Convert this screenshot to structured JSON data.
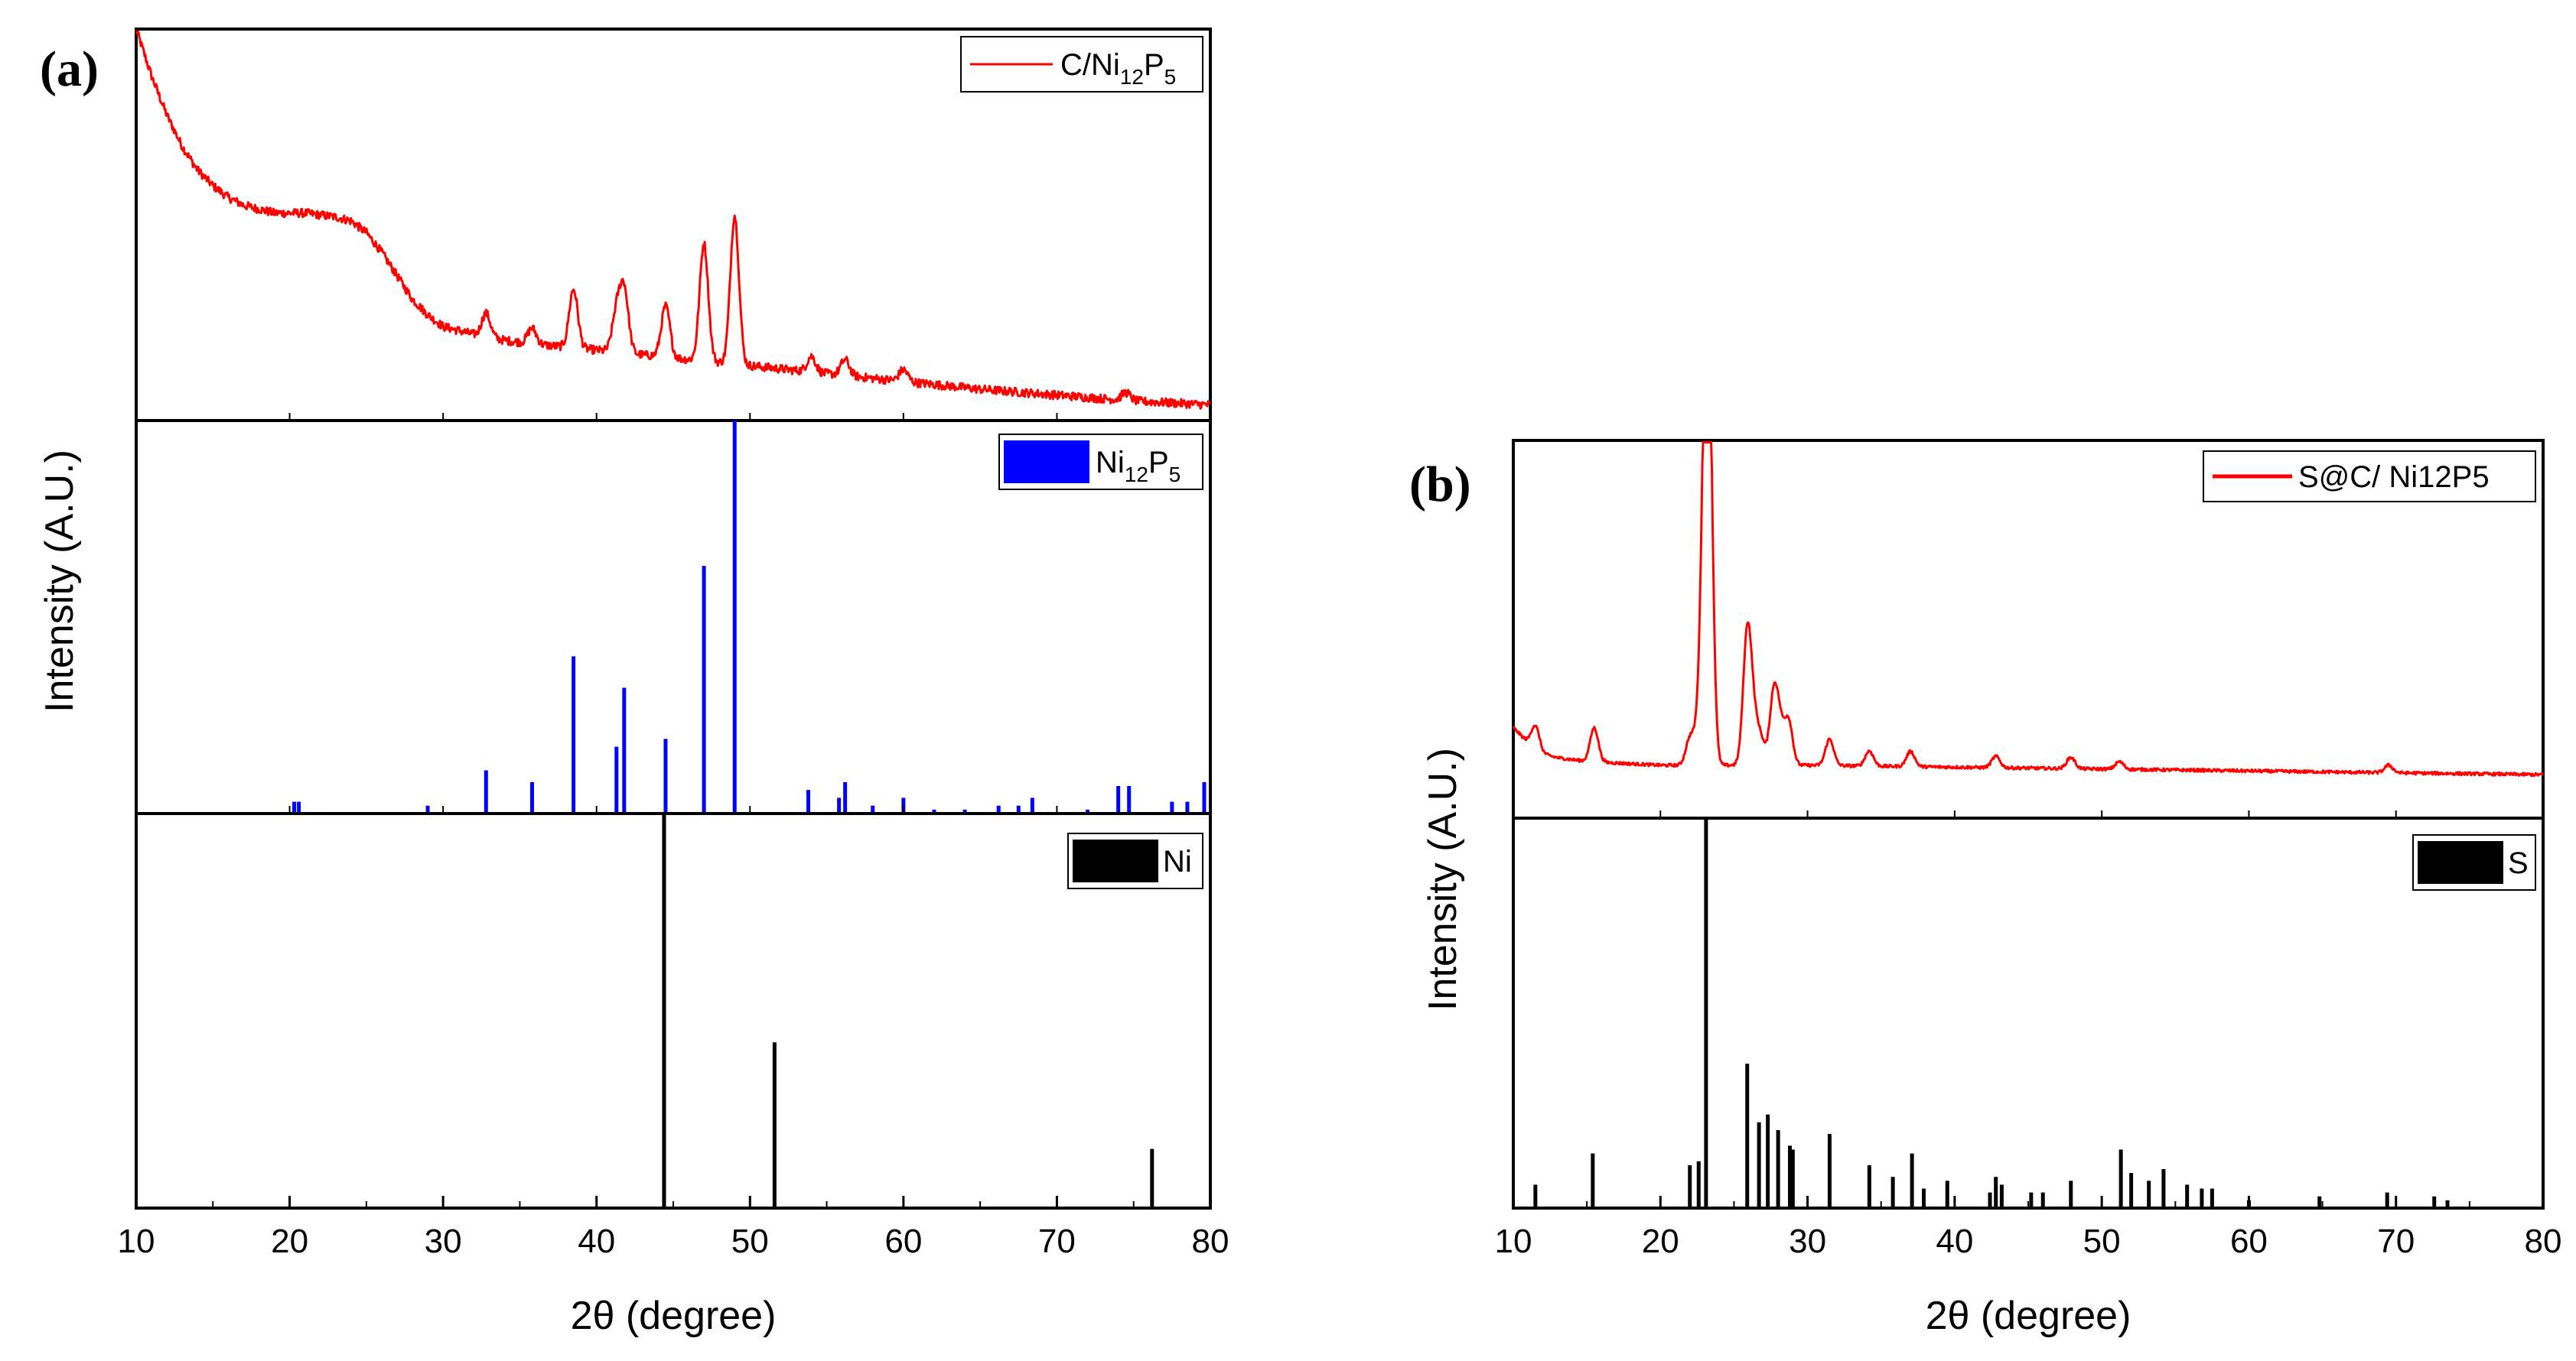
{
  "chart_data": [
    {
      "panel_label": "(a)",
      "type": "line",
      "xlabel": "2θ (degree)",
      "ylabel": "Intensity (A.U.)",
      "xlim": [
        10,
        80
      ],
      "xticks": [
        10,
        20,
        30,
        40,
        50,
        60,
        70,
        80
      ],
      "colors": {
        "sample": "#ff0000",
        "ref1": "#0000ff",
        "ref2": "#000000"
      },
      "subplots": [
        {
          "name": "C/Ni12P5",
          "legend": "C/Ni12P5",
          "legend_main": "C/Ni",
          "legend_sub1": "12",
          "legend_mid": "P",
          "legend_sub2": "5",
          "kind": "line",
          "color": "#ff0000",
          "baseline": {
            "x": [
              10,
              11,
              12,
              13,
              14,
              15,
              16,
              17,
              18,
              19,
              20,
              21,
              22,
              23,
              24,
              25,
              26,
              27,
              28,
              29,
              30,
              32,
              34,
              36,
              40,
              45,
              50,
              55,
              60,
              65,
              70,
              75,
              80
            ],
            "y": [
              100,
              88,
              78,
              70,
              64,
              60,
              57,
              55,
              54,
              53,
              53,
              53,
              52.5,
              52,
              51,
              48,
              43,
              37,
              31,
              27,
              24,
              22,
              20.5,
              19.5,
              18,
              16,
              14,
              12,
              10,
              8,
              6.5,
              5,
              4
            ]
          },
          "peaks": [
            {
              "x": 32.8,
              "h": 6
            },
            {
              "x": 35.8,
              "h": 4
            },
            {
              "x": 38.5,
              "h": 15
            },
            {
              "x": 41.3,
              "h": 10
            },
            {
              "x": 41.8,
              "h": 16
            },
            {
              "x": 44.5,
              "h": 13
            },
            {
              "x": 47.0,
              "h": 30
            },
            {
              "x": 49.0,
              "h": 38
            },
            {
              "x": 54.0,
              "h": 4
            },
            {
              "x": 56.2,
              "h": 4
            },
            {
              "x": 60.0,
              "h": 3
            },
            {
              "x": 74.5,
              "h": 2
            }
          ],
          "ylim": [
            0,
            100
          ]
        },
        {
          "name": "Ni12P5",
          "legend": "Ni12P5",
          "legend_main": "Ni",
          "legend_sub1": "12",
          "legend_mid": "P",
          "legend_sub2": "5",
          "kind": "stick",
          "color": "#0000ff",
          "x": [
            20.3,
            20.6,
            29.0,
            32.8,
            35.8,
            38.5,
            41.3,
            41.8,
            44.5,
            47.0,
            49.0,
            53.8,
            55.8,
            56.2,
            58.0,
            60.0,
            62.0,
            64.0,
            66.2,
            67.5,
            68.4,
            72.0,
            74.0,
            74.7,
            77.5,
            78.5,
            79.6
          ],
          "y": [
            3,
            3,
            2,
            11,
            8,
            40,
            17,
            32,
            19,
            63,
            100,
            6,
            4,
            8,
            2,
            4,
            1,
            1,
            2,
            2,
            4,
            1,
            7,
            7,
            3,
            3,
            8
          ],
          "ylim": [
            0,
            100
          ]
        },
        {
          "name": "Ni",
          "legend": "Ni",
          "kind": "stick",
          "color": "#000000",
          "x": [
            44.4,
            51.6,
            76.2
          ],
          "y": [
            100,
            42,
            15
          ],
          "ylim": [
            0,
            100
          ]
        }
      ]
    },
    {
      "panel_label": "(b)",
      "type": "line",
      "xlabel": "2θ (degree)",
      "ylabel": "Intensity (A.U.)",
      "xlim": [
        10,
        80
      ],
      "xticks": [
        10,
        20,
        30,
        40,
        50,
        60,
        70,
        80
      ],
      "subplots": [
        {
          "name": "S@C/ Ni12P5",
          "legend": "S@C/ Ni12P5",
          "kind": "line",
          "color": "#ff0000",
          "baseline": {
            "x": [
              10,
              11,
              12,
              13,
              15,
              20,
              25,
              30,
              40,
              50,
              60,
              70,
              80
            ],
            "y": [
              24,
              20,
              17,
              16,
              15,
              14,
              14,
              14,
              13.5,
              13,
              12.5,
              12,
              11.5
            ]
          },
          "peaks": [
            {
              "x": 11.5,
              "h": 6
            },
            {
              "x": 15.5,
              "h": 9
            },
            {
              "x": 22.0,
              "h": 7
            },
            {
              "x": 22.6,
              "h": 9
            },
            {
              "x": 23.1,
              "h": 86
            },
            {
              "x": 23.3,
              "h": 60
            },
            {
              "x": 25.9,
              "h": 34
            },
            {
              "x": 26.3,
              "h": 10
            },
            {
              "x": 26.8,
              "h": 7
            },
            {
              "x": 27.7,
              "h": 18
            },
            {
              "x": 28.1,
              "h": 9
            },
            {
              "x": 28.7,
              "h": 12
            },
            {
              "x": 31.5,
              "h": 7
            },
            {
              "x": 34.2,
              "h": 4
            },
            {
              "x": 37.0,
              "h": 4
            },
            {
              "x": 42.8,
              "h": 3
            },
            {
              "x": 47.9,
              "h": 3
            },
            {
              "x": 51.2,
              "h": 2
            },
            {
              "x": 69.5,
              "h": 2
            }
          ],
          "ylim": [
            0,
            100
          ]
        },
        {
          "name": "S",
          "legend": "S",
          "kind": "stick",
          "color": "#000000",
          "x": [
            11.5,
            15.4,
            22.0,
            22.6,
            23.1,
            25.9,
            26.7,
            27.3,
            28.0,
            28.8,
            29.0,
            31.5,
            34.2,
            35.8,
            37.1,
            37.9,
            39.5,
            42.4,
            42.8,
            43.2,
            45.2,
            46.0,
            47.9,
            51.3,
            52.0,
            53.2,
            54.2,
            55.8,
            56.8,
            57.5,
            60.0,
            64.8,
            69.4,
            72.6,
            73.5
          ],
          "y": [
            6,
            14,
            11,
            12,
            100,
            37,
            22,
            24,
            20,
            16,
            15,
            19,
            11,
            8,
            14,
            5,
            7,
            4,
            8,
            6,
            4,
            4,
            7,
            15,
            9,
            7,
            10,
            6,
            5,
            5,
            2,
            3,
            4,
            3,
            2
          ],
          "ylim": [
            0,
            100
          ]
        }
      ]
    }
  ]
}
